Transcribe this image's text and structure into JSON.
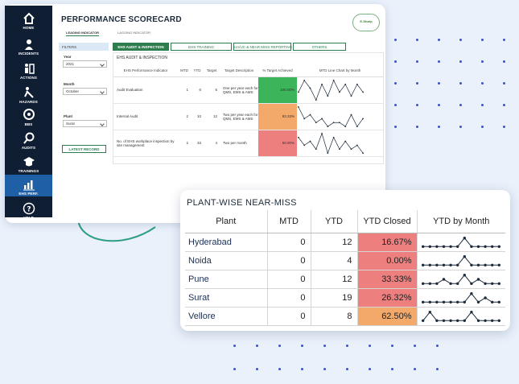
{
  "colors": {
    "sidebar": "#0f1e33",
    "active_nav": "#1f5fa6",
    "accent_green": "#2e7d4f",
    "good": "#3cb45a",
    "warn": "#f2a96a",
    "bad": "#ed7f7f",
    "dot": "#3d54c8"
  },
  "sidebar": {
    "items": [
      {
        "label": "HOME",
        "icon": "home-icon"
      },
      {
        "label": "INCIDENTS",
        "icon": "incidents-icon"
      },
      {
        "label": "ACTIONS",
        "icon": "actions-icon"
      },
      {
        "label": "HAZARDS",
        "icon": "hazards-icon"
      },
      {
        "label": "BBS",
        "icon": "bbs-icon"
      },
      {
        "label": "AUDITS",
        "icon": "audits-icon"
      },
      {
        "label": "TRAININGS",
        "icon": "trainings-icon"
      },
      {
        "label": "EHS PERF.",
        "icon": "bar-chart-icon",
        "active": true
      },
      {
        "label": "HELP",
        "icon": "help-icon"
      }
    ]
  },
  "header": {
    "title": "PERFORMANCE SCORECARD",
    "logo_text": "E-Sharp"
  },
  "subtabs": {
    "leading": "LEADING INDICATOR",
    "lagging": "LAGGING INDICATOR"
  },
  "filters": {
    "heading": "FILTERS",
    "year_label": "Year",
    "year_value": "2021",
    "month_label": "Month",
    "month_value": "October",
    "plant_label": "Plant",
    "plant_value": "Surat",
    "button": "LATEST RECORD"
  },
  "tabs": [
    "EHS AUDIT & INSPECTION",
    "EHS TRAINING",
    "UA/UC & NEAR MISS REPORTING",
    "OTHERS"
  ],
  "scorecard": {
    "panel_title": "EHS AUDIT & INSPECTION",
    "columns": [
      "EHS Performance Indicator",
      "MTD",
      "YTD",
      "Target",
      "Target Description",
      "% Target Achieved",
      "MTD Line Chart by Month"
    ],
    "rows": [
      {
        "indicator": "Audit Evaluation",
        "mtd": "1",
        "ytd": "6",
        "target": "6",
        "description": "One per year each for QMS, EMS & AMS",
        "pct": "100.00%",
        "status": "good",
        "trend": [
          3,
          6,
          4,
          1,
          5,
          2,
          6,
          3,
          5,
          2,
          5,
          3
        ]
      },
      {
        "indicator": "Internal Audit",
        "mtd": "2",
        "ytd": "10",
        "target": "12",
        "description": "Two per year each for QMS, EMS & AMS",
        "pct": "83.33%",
        "status": "warn",
        "trend": [
          6,
          3,
          4,
          2,
          3,
          1,
          2,
          2,
          1,
          4,
          1,
          3
        ]
      },
      {
        "indicator": "No. of EHS workplace inspection by site management",
        "mtd": "2",
        "ytd": "33",
        "target": "4",
        "description": "Two per month",
        "pct": "50.00%",
        "status": "bad",
        "trend": [
          5,
          3,
          4,
          2,
          6,
          1,
          5,
          2,
          4,
          2,
          3,
          1
        ]
      }
    ]
  },
  "nearmiss": {
    "title": "PLANT-WISE NEAR-MISS",
    "columns": [
      "Plant",
      "MTD",
      "YTD",
      "YTD Closed",
      "YTD by Month"
    ],
    "rows": [
      {
        "plant": "Hyderabad",
        "mtd": "0",
        "ytd": "12",
        "closed": "16.67%",
        "status": "bad",
        "trend": [
          1,
          1,
          1,
          1,
          1,
          1,
          3,
          1,
          1,
          1,
          1,
          1
        ]
      },
      {
        "plant": "Noida",
        "mtd": "0",
        "ytd": "4",
        "closed": "0.00%",
        "status": "bad",
        "trend": [
          1,
          1,
          1,
          1,
          1,
          1,
          3,
          1,
          1,
          1,
          1,
          1
        ]
      },
      {
        "plant": "Pune",
        "mtd": "0",
        "ytd": "12",
        "closed": "33.33%",
        "status": "bad",
        "trend": [
          1,
          1,
          1,
          2,
          1,
          1,
          3,
          1,
          2,
          1,
          1,
          1
        ]
      },
      {
        "plant": "Surat",
        "mtd": "0",
        "ytd": "19",
        "closed": "26.32%",
        "status": "bad",
        "trend": [
          1,
          1,
          1,
          1,
          1,
          1,
          1,
          3,
          1,
          2,
          1,
          1
        ]
      },
      {
        "plant": "Vellore",
        "mtd": "0",
        "ytd": "8",
        "closed": "62.50%",
        "status": "warn",
        "trend": [
          1,
          3,
          1,
          1,
          1,
          1,
          1,
          3,
          1,
          1,
          1,
          1
        ]
      }
    ]
  }
}
